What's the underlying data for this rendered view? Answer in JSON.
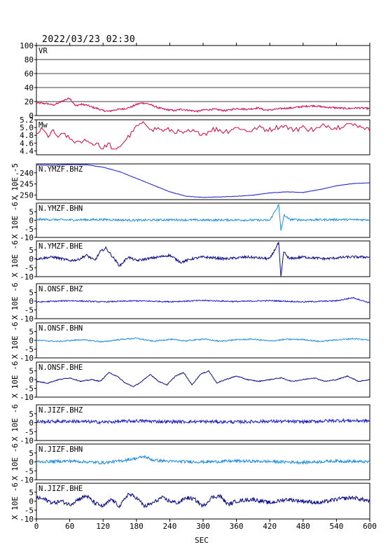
{
  "header": {
    "datetime": "2022/03/23 02:30"
  },
  "colors": {
    "vr": "#e0004a",
    "mw": "#e0003a",
    "dark": "#0a0a8c",
    "mid": "#1a1ad2",
    "light": "#1f8ee6"
  },
  "chart_data": {
    "type": "line",
    "x": {
      "label": "SEC",
      "range": [
        0,
        600
      ],
      "ticks": [
        "0",
        "60",
        "120",
        "180",
        "240",
        "300",
        "360",
        "420",
        "480",
        "540",
        "600"
      ]
    },
    "panels": [
      {
        "name": "VR",
        "ylabel": "",
        "yrange": [
          0,
          100
        ],
        "ticks": [
          "100",
          "80",
          "60",
          "40",
          "20",
          "0"
        ],
        "grid": true,
        "color": "vr",
        "series": {
          "x": [
            0,
            20,
            30,
            40,
            50,
            60,
            70,
            80,
            90,
            100,
            110,
            120,
            130,
            140,
            150,
            160,
            170,
            180,
            190,
            200,
            210,
            220,
            230,
            240,
            250,
            260,
            270,
            280,
            290,
            300,
            320,
            340,
            360,
            380,
            400,
            410,
            420,
            430,
            440,
            460,
            480,
            500,
            520,
            540,
            560,
            580,
            600
          ],
          "y": [
            18,
            17,
            15,
            18,
            22,
            25,
            14,
            16,
            15,
            12,
            10,
            7,
            6,
            8,
            9,
            10,
            12,
            16,
            18,
            17,
            14,
            11,
            9,
            8,
            7,
            9,
            8,
            7,
            6,
            8,
            9,
            7,
            10,
            9,
            11,
            8,
            8,
            9,
            10,
            11,
            13,
            14,
            12,
            11,
            10,
            11,
            10
          ]
        }
      },
      {
        "name": "Mw",
        "ylabel": "",
        "yrange": [
          4.3,
          5.2
        ],
        "ticks": [
          "5.2",
          "5.0",
          "4.8",
          "4.6",
          "4.4"
        ],
        "grid": false,
        "color": "mw",
        "series": {
          "x": [
            0,
            10,
            20,
            30,
            40,
            50,
            60,
            70,
            80,
            90,
            100,
            110,
            120,
            130,
            140,
            150,
            160,
            170,
            180,
            190,
            200,
            210,
            220,
            230,
            240,
            260,
            280,
            300,
            320,
            340,
            360,
            380,
            400,
            420,
            440,
            460,
            480,
            500,
            520,
            540,
            560,
            580,
            600
          ],
          "y": [
            4.85,
            4.95,
            4.8,
            4.9,
            4.75,
            4.85,
            4.7,
            4.65,
            4.6,
            4.7,
            4.55,
            4.6,
            4.45,
            4.6,
            4.4,
            4.5,
            4.7,
            4.85,
            5.0,
            5.1,
            5.05,
            4.95,
            5.0,
            4.9,
            4.95,
            4.85,
            4.9,
            4.85,
            4.95,
            4.9,
            5.0,
            4.9,
            5.0,
            4.95,
            5.05,
            4.95,
            5.0,
            4.95,
            5.05,
            5.0,
            5.1,
            5.05,
            4.95
          ]
        }
      },
      {
        "name": "N.YMZF.BHZ",
        "ylabel": "X 10E -5",
        "yrange": [
          -252,
          -236
        ],
        "ticks": [
          "-240",
          "-245",
          "-250"
        ],
        "grid": false,
        "color": "mid",
        "series": {
          "x": [
            0,
            30,
            60,
            90,
            120,
            150,
            180,
            210,
            240,
            270,
            300,
            330,
            360,
            390,
            420,
            450,
            480,
            510,
            540,
            570,
            600
          ],
          "y": [
            -236.5,
            -236.6,
            -236.3,
            -236.4,
            -237.5,
            -239.5,
            -242.5,
            -245.5,
            -248.5,
            -250.5,
            -251.0,
            -250.8,
            -250.5,
            -250.0,
            -249.0,
            -248.5,
            -248.8,
            -247.5,
            -245.8,
            -244.8,
            -244.5
          ]
        }
      },
      {
        "name": "N.YMZF.BHN",
        "ylabel": "X 10E -6",
        "yrange": [
          -10,
          10
        ],
        "ticks": [
          "5",
          "0",
          "-5",
          "-10"
        ],
        "grid": false,
        "color": "light",
        "series": {
          "x": [
            0,
            60,
            120,
            180,
            240,
            300,
            360,
            420,
            436,
            440,
            446,
            455,
            480,
            540,
            600
          ],
          "y": [
            0.5,
            0.2,
            0.4,
            0,
            0.3,
            0.1,
            0.2,
            0,
            9,
            -6,
            3,
            0.5,
            0.2,
            0.4,
            0.3
          ]
        }
      },
      {
        "name": "N.YMZF.BHE",
        "ylabel": "X 10E -6",
        "yrange": [
          -10,
          10
        ],
        "ticks": [
          "5",
          "0",
          "-5",
          "-10"
        ],
        "grid": false,
        "color": "dark",
        "series": {
          "x": [
            0,
            30,
            60,
            75,
            90,
            105,
            115,
            125,
            135,
            150,
            165,
            180,
            200,
            220,
            240,
            260,
            280,
            300,
            340,
            380,
            420,
            436,
            440,
            445,
            455,
            480,
            520,
            560,
            600
          ],
          "y": [
            0,
            1,
            -1,
            -0.5,
            2,
            -1,
            4,
            6,
            2,
            -4,
            1,
            -1,
            0,
            1,
            2,
            -2,
            0,
            1,
            0,
            1,
            0,
            9,
            -11,
            4,
            0,
            1,
            0,
            1,
            1
          ]
        }
      },
      {
        "name": "N.ONSF.BHZ",
        "ylabel": "X 10E -6",
        "yrange": [
          -10,
          10
        ],
        "ticks": [
          "5",
          "0",
          "-5",
          "-10"
        ],
        "grid": false,
        "color": "mid",
        "series": {
          "x": [
            0,
            60,
            120,
            180,
            240,
            300,
            360,
            420,
            480,
            540,
            570,
            585,
            600
          ],
          "y": [
            -0.5,
            0.3,
            -0.4,
            0.2,
            -0.3,
            0.4,
            -0.2,
            0.3,
            -0.4,
            0.2,
            2,
            0.5,
            -1
          ]
        }
      },
      {
        "name": "N.ONSF.BHN",
        "ylabel": "X 10E -6",
        "yrange": [
          -10,
          10
        ],
        "ticks": [
          "5",
          "0",
          "-5",
          "-10"
        ],
        "grid": false,
        "color": "light",
        "series": {
          "x": [
            0,
            40,
            80,
            120,
            150,
            180,
            210,
            240,
            270,
            300,
            330,
            360,
            390,
            420,
            450,
            480,
            510,
            540,
            570,
            600
          ],
          "y": [
            0,
            -0.6,
            0.4,
            -0.8,
            0.5,
            1.2,
            -0.5,
            0.6,
            -0.3,
            0.8,
            -0.5,
            0.4,
            0.7,
            -0.4,
            0.6,
            0.5,
            -0.6,
            0.3,
            1,
            0.2
          ]
        }
      },
      {
        "name": "N.ONSF.BHE",
        "ylabel": "X 10E -6",
        "yrange": [
          -10,
          10
        ],
        "ticks": [
          "5",
          "0",
          "-5",
          "-10"
        ],
        "grid": false,
        "color": "dark",
        "series": {
          "x": [
            0,
            20,
            40,
            60,
            80,
            100,
            115,
            130,
            145,
            160,
            175,
            190,
            205,
            220,
            235,
            250,
            265,
            280,
            295,
            310,
            325,
            340,
            360,
            380,
            400,
            420,
            440,
            460,
            480,
            500,
            520,
            540,
            560,
            580,
            600
          ],
          "y": [
            -1,
            -2,
            0,
            1,
            -1,
            0,
            -1,
            4,
            2,
            -2,
            -4,
            -1,
            3,
            -1,
            -3,
            2,
            4,
            -3,
            3,
            5,
            -2,
            0,
            2,
            0,
            -1,
            0,
            1,
            -1,
            0,
            1,
            -1,
            0,
            2,
            -1,
            0
          ]
        }
      },
      {
        "name": "N.JIZF.BHZ",
        "ylabel": "X 10E -6",
        "yrange": [
          -10,
          10
        ],
        "ticks": [
          "5",
          "0",
          "-5",
          "-10"
        ],
        "grid": false,
        "color": "mid",
        "series": {
          "x": [
            0,
            60,
            120,
            180,
            240,
            300,
            360,
            420,
            480,
            540,
            600
          ],
          "y": [
            0.5,
            0.8,
            0.3,
            1,
            0.5,
            0.6,
            0.4,
            0.8,
            0.5,
            1.2,
            1
          ]
        }
      },
      {
        "name": "N.JIZF.BHN",
        "ylabel": "X 10E -6",
        "yrange": [
          -10,
          10
        ],
        "ticks": [
          "5",
          "0",
          "-5",
          "-10"
        ],
        "grid": false,
        "color": "light",
        "series": {
          "x": [
            0,
            60,
            120,
            150,
            180,
            195,
            210,
            240,
            300,
            360,
            420,
            480,
            540,
            600
          ],
          "y": [
            0,
            0.5,
            -0.5,
            0.5,
            2,
            3,
            1,
            0.3,
            0,
            0.5,
            0.2,
            -0.3,
            0.5,
            0
          ]
        }
      },
      {
        "name": "N.JIZF.BHE",
        "ylabel": "X 10E -6",
        "yrange": [
          -10,
          10
        ],
        "ticks": [
          "5",
          "0",
          "-5",
          "-10"
        ],
        "grid": false,
        "color": "dark",
        "series": {
          "x": [
            0,
            15,
            30,
            45,
            60,
            75,
            90,
            105,
            120,
            135,
            150,
            165,
            180,
            195,
            210,
            225,
            240,
            255,
            270,
            285,
            300,
            315,
            330,
            345,
            360,
            390,
            420,
            450,
            480,
            510,
            540,
            570,
            600
          ],
          "y": [
            2,
            1,
            -1,
            0,
            -2,
            1,
            3,
            -1,
            -3,
            1,
            -3,
            4,
            2,
            -3,
            -1,
            2,
            0,
            -1,
            2,
            1,
            -3,
            2,
            3,
            -2,
            0,
            1,
            -1,
            1,
            0,
            -1,
            1,
            2,
            0
          ]
        }
      }
    ]
  }
}
